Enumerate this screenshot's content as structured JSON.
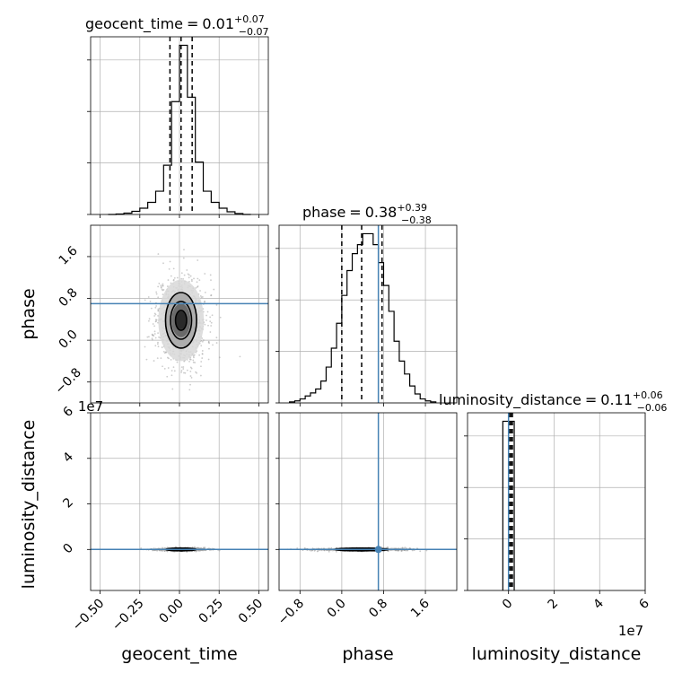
{
  "chart_data": {
    "type": "corner",
    "parameters": [
      "geocent_time",
      "phase",
      "luminosity_distance"
    ],
    "titles": [
      {
        "name": "geocent_time",
        "value": "0.01",
        "plus": "+0.07",
        "minus": "−0.07"
      },
      {
        "name": "phase",
        "value": "0.38",
        "plus": "+0.39",
        "minus": "−0.38"
      },
      {
        "name": "luminosity_distance",
        "value": "0.11",
        "plus": "+0.06",
        "minus": "−0.06"
      }
    ],
    "axes": {
      "geocent_time": {
        "range": [
          -0.56,
          0.56
        ],
        "ticks": [
          -0.5,
          -0.25,
          0.0,
          0.25,
          0.5
        ],
        "tick_labels": [
          "−0.50",
          "−0.25",
          "0.00",
          "0.25",
          "0.50"
        ]
      },
      "phase": {
        "range": [
          -1.2,
          2.2
        ],
        "ticks": [
          -0.8,
          0.0,
          0.8,
          1.6
        ],
        "tick_labels": [
          "−0.8",
          "0.0",
          "0.8",
          "1.6"
        ]
      },
      "luminosity_distance": {
        "range": [
          -1.8,
          6.0
        ],
        "ticks": [
          0,
          2,
          4,
          6
        ],
        "tick_labels": [
          "0",
          "2",
          "4",
          "6"
        ],
        "offset_text": "1e7"
      }
    },
    "truths": {
      "geocent_time": null,
      "phase": 0.7,
      "luminosity_distance": 0.0
    },
    "truth_color": "#4682b4",
    "histograms": {
      "geocent_time": {
        "bin_edges": [
          -0.45,
          -0.4,
          -0.35,
          -0.3,
          -0.25,
          -0.2,
          -0.15,
          -0.1,
          -0.05,
          0.0,
          0.05,
          0.1,
          0.15,
          0.2,
          0.25,
          0.3,
          0.35,
          0.4,
          0.45
        ],
        "counts": [
          0,
          1,
          3,
          7,
          14,
          27,
          52,
          110,
          252,
          378,
          262,
          117,
          52,
          27,
          14,
          6,
          2,
          0
        ],
        "quantiles": [
          -0.06,
          0.01,
          0.08
        ]
      },
      "phase": {
        "bin_edges": [
          -1.0,
          -0.9,
          -0.8,
          -0.7,
          -0.6,
          -0.5,
          -0.4,
          -0.3,
          -0.2,
          -0.1,
          0.0,
          0.1,
          0.2,
          0.3,
          0.4,
          0.5,
          0.6,
          0.7,
          0.8,
          0.9,
          1.0,
          1.1,
          1.2,
          1.3,
          1.4,
          1.5,
          1.6,
          1.7,
          1.8
        ],
        "counts": [
          1,
          2,
          4,
          7,
          10,
          14,
          22,
          36,
          55,
          80,
          108,
          133,
          150,
          159,
          170,
          170,
          159,
          141,
          118,
          92,
          62,
          42,
          29,
          17,
          9,
          4,
          2,
          1
        ],
        "quantiles": [
          0.0,
          0.38,
          0.77
        ]
      },
      "luminosity_distance": {
        "bin_edges": [
          -0.25,
          0.0,
          0.25
        ],
        "counts": [
          1000,
          1000
        ],
        "quantiles": [
          0.05,
          0.11,
          0.17
        ]
      }
    },
    "scatter_2d": [
      {
        "x": "geocent_time",
        "y": "phase",
        "center": [
          0.01,
          0.38
        ],
        "spread": [
          0.07,
          0.38
        ],
        "contour_levels": [
          0.5,
          1.0,
          1.5
        ]
      },
      {
        "x": "geocent_time",
        "y": "luminosity_distance",
        "center": [
          0.01,
          0.0
        ],
        "spread": [
          0.07,
          0.03
        ],
        "contour_levels": [
          0.5,
          1.0,
          1.5
        ]
      },
      {
        "x": "phase",
        "y": "luminosity_distance",
        "center": [
          0.38,
          0.0
        ],
        "spread": [
          0.38,
          0.03
        ],
        "contour_levels": [
          0.5,
          1.0,
          1.5
        ]
      }
    ],
    "grid": true,
    "grid_color": "#b0b0b0"
  }
}
